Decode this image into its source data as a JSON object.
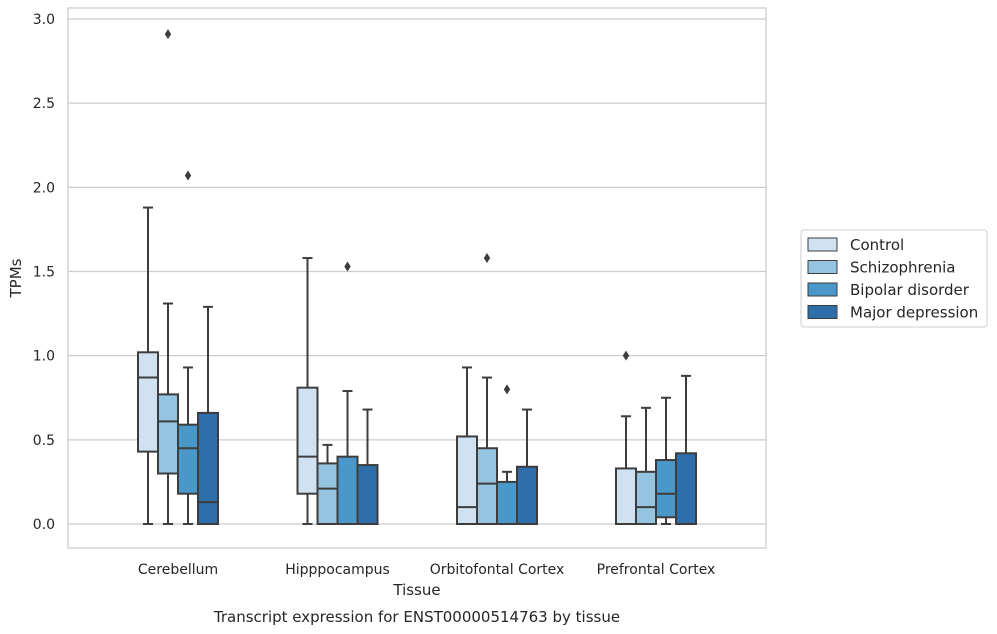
{
  "chart_data": {
    "type": "box",
    "title": "",
    "xlabel": "Tissue",
    "ylabel": "TPMs",
    "caption": "Transcript expression for ENST00000514763 by tissue",
    "ylim": [
      -0.14,
      3.08
    ],
    "yticks": [
      "0.0",
      "0.5",
      "1.0",
      "1.5",
      "2.0",
      "2.5",
      "3.0"
    ],
    "grid": true,
    "legend_position": "right",
    "categories": [
      "Cerebellum",
      "Hipppocampus",
      "Orbitofontal Cortex",
      "Prefrontal Cortex"
    ],
    "series": [
      {
        "name": "Control",
        "color": "#d0e1f2",
        "boxes": [
          {
            "min": 0.0,
            "q1": 0.43,
            "median": 0.87,
            "q3": 1.02,
            "max": 1.88,
            "outliers": []
          },
          {
            "min": 0.0,
            "q1": 0.18,
            "median": 0.4,
            "q3": 0.81,
            "max": 1.58,
            "outliers": []
          },
          {
            "min": 0.0,
            "q1": 0.0,
            "median": 0.1,
            "q3": 0.52,
            "max": 0.93,
            "outliers": []
          },
          {
            "min": 0.0,
            "q1": 0.0,
            "median": 0.0,
            "q3": 0.33,
            "max": 0.64,
            "outliers": [
              1.0
            ]
          }
        ]
      },
      {
        "name": "Schizophrenia",
        "color": "#94c4df",
        "boxes": [
          {
            "min": 0.0,
            "q1": 0.3,
            "median": 0.61,
            "q3": 0.77,
            "max": 1.31,
            "outliers": [
              2.91
            ]
          },
          {
            "min": 0.0,
            "q1": 0.0,
            "median": 0.21,
            "q3": 0.36,
            "max": 0.47,
            "outliers": []
          },
          {
            "min": 0.0,
            "q1": 0.0,
            "median": 0.24,
            "q3": 0.45,
            "max": 0.87,
            "outliers": [
              1.58
            ]
          },
          {
            "min": 0.0,
            "q1": 0.0,
            "median": 0.1,
            "q3": 0.31,
            "max": 0.69,
            "outliers": []
          }
        ]
      },
      {
        "name": "Bipolar disorder",
        "color": "#4a98c9",
        "boxes": [
          {
            "min": 0.0,
            "q1": 0.18,
            "median": 0.45,
            "q3": 0.59,
            "max": 0.93,
            "outliers": [
              2.07
            ]
          },
          {
            "min": 0.0,
            "q1": 0.0,
            "median": 0.0,
            "q3": 0.4,
            "max": 0.79,
            "outliers": [
              1.53
            ]
          },
          {
            "min": 0.0,
            "q1": 0.0,
            "median": 0.0,
            "q3": 0.25,
            "max": 0.31,
            "outliers": [
              0.8
            ]
          },
          {
            "min": 0.0,
            "q1": 0.04,
            "median": 0.18,
            "q3": 0.38,
            "max": 0.75,
            "outliers": []
          }
        ]
      },
      {
        "name": "Major depression",
        "color": "#2e6eaa",
        "boxes": [
          {
            "min": 0.0,
            "q1": 0.0,
            "median": 0.13,
            "q3": 0.66,
            "max": 1.29,
            "outliers": []
          },
          {
            "min": 0.0,
            "q1": 0.0,
            "median": 0.0,
            "q3": 0.35,
            "max": 0.68,
            "outliers": []
          },
          {
            "min": 0.0,
            "q1": 0.0,
            "median": 0.0,
            "q3": 0.34,
            "max": 0.68,
            "outliers": []
          },
          {
            "min": 0.0,
            "q1": 0.0,
            "median": 0.0,
            "q3": 0.42,
            "max": 0.88,
            "outliers": []
          }
        ]
      }
    ]
  }
}
